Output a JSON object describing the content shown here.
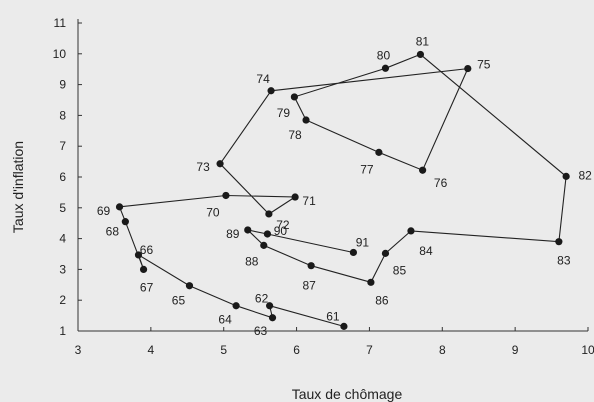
{
  "chart_data": {
    "type": "line",
    "xlabel": "Taux de chômage",
    "ylabel": "Taux d'inflation",
    "xlim": [
      3,
      10
    ],
    "ylim": [
      1,
      11
    ],
    "xticks": [
      "3",
      "4",
      "5",
      "6",
      "7",
      "8",
      "9",
      "10"
    ],
    "yticks": [
      "1",
      "2",
      "3",
      "4",
      "5",
      "6",
      "7",
      "8",
      "9",
      "10",
      "11"
    ],
    "grid": false,
    "series": [
      {
        "points": [
          {
            "label": "61",
            "x": 6.65,
            "y": 1.15
          },
          {
            "label": "62",
            "x": 5.63,
            "y": 1.82
          },
          {
            "label": "63",
            "x": 5.67,
            "y": 1.43
          },
          {
            "label": "64",
            "x": 5.17,
            "y": 1.82
          },
          {
            "label": "65",
            "x": 4.53,
            "y": 2.47
          },
          {
            "label": "66",
            "x": 3.83,
            "y": 3.47
          },
          {
            "label": "67",
            "x": 3.9,
            "y": 3.0
          },
          {
            "label": "68",
            "x": 3.65,
            "y": 4.55
          },
          {
            "label": "69",
            "x": 3.57,
            "y": 5.03
          },
          {
            "label": "70",
            "x": 5.03,
            "y": 5.4
          },
          {
            "label": "71",
            "x": 5.98,
            "y": 5.35
          },
          {
            "label": "72",
            "x": 5.62,
            "y": 4.8
          },
          {
            "label": "73",
            "x": 4.95,
            "y": 6.43
          },
          {
            "label": "74",
            "x": 5.65,
            "y": 8.8
          },
          {
            "label": "75",
            "x": 8.35,
            "y": 9.52
          },
          {
            "label": "76",
            "x": 7.73,
            "y": 6.22
          },
          {
            "label": "77",
            "x": 7.13,
            "y": 6.8
          },
          {
            "label": "78",
            "x": 6.13,
            "y": 7.85
          },
          {
            "label": "79",
            "x": 5.97,
            "y": 8.6
          },
          {
            "label": "80",
            "x": 7.22,
            "y": 9.53
          },
          {
            "label": "81",
            "x": 7.7,
            "y": 9.98
          },
          {
            "label": "82",
            "x": 9.7,
            "y": 6.02
          },
          {
            "label": "83",
            "x": 9.6,
            "y": 3.9
          },
          {
            "label": "84",
            "x": 7.57,
            "y": 4.25
          },
          {
            "label": "85",
            "x": 7.22,
            "y": 3.52
          },
          {
            "label": "86",
            "x": 7.02,
            "y": 2.58
          },
          {
            "label": "87",
            "x": 6.2,
            "y": 3.12
          },
          {
            "label": "88",
            "x": 5.55,
            "y": 3.78
          },
          {
            "label": "89",
            "x": 5.33,
            "y": 4.28
          },
          {
            "label": "90",
            "x": 5.6,
            "y": 4.15
          },
          {
            "label": "91",
            "x": 6.78,
            "y": 3.55
          }
        ]
      }
    ]
  }
}
